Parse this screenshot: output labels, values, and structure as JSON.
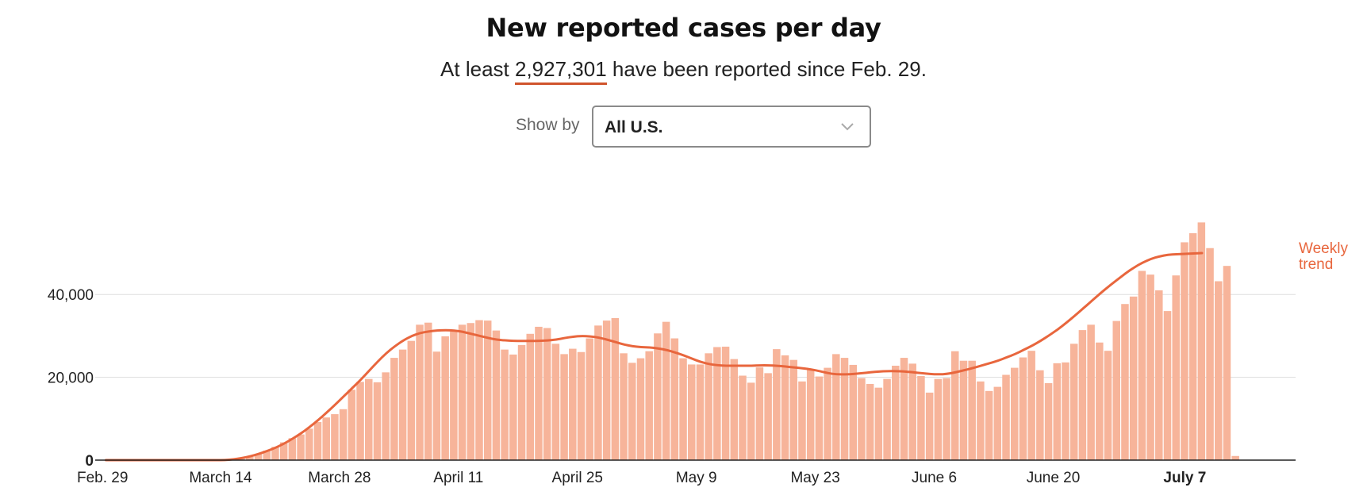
{
  "header": {
    "title": "New reported cases per day",
    "subtitle_prefix": "At least ",
    "subtitle_number": "2,927,301",
    "subtitle_suffix": " have been reported since Feb. 29."
  },
  "filter": {
    "label": "Show by",
    "selected": "All U.S.",
    "chevron_icon": "chevron-down-icon"
  },
  "colors": {
    "bar": "#f7b49a",
    "trend": "#e8663d",
    "accent_underline": "#d0542c"
  },
  "chart_data": {
    "type": "bar",
    "x_start": "Feb. 29",
    "x_end": "July 7",
    "ylim": [
      0,
      58000
    ],
    "y_ticks": [
      {
        "value": 0,
        "label": "0"
      },
      {
        "value": 20000,
        "label": "20,000"
      },
      {
        "value": 40000,
        "label": "40,000"
      }
    ],
    "x_ticks": [
      {
        "day": 0,
        "label": "Feb. 29"
      },
      {
        "day": 14,
        "label": "March 14"
      },
      {
        "day": 28,
        "label": "March 28"
      },
      {
        "day": 42,
        "label": "April 11"
      },
      {
        "day": 56,
        "label": "April 25"
      },
      {
        "day": 70,
        "label": "May 9"
      },
      {
        "day": 84,
        "label": "May 23"
      },
      {
        "day": 98,
        "label": "June 6"
      },
      {
        "day": 112,
        "label": "June 20"
      },
      {
        "day": 129,
        "label": "July 7"
      }
    ],
    "values": [
      0,
      0,
      0,
      0,
      0,
      0,
      0,
      0,
      0,
      0,
      0,
      0,
      0,
      0,
      0,
      100,
      300,
      800,
      1500,
      2300,
      3200,
      4300,
      5300,
      6200,
      7600,
      9200,
      10300,
      11100,
      12300,
      17000,
      18900,
      19600,
      18800,
      21200,
      24700,
      26700,
      28800,
      32700,
      33200,
      26200,
      29900,
      31100,
      32700,
      33100,
      33800,
      33700,
      31300,
      26700,
      25500,
      27800,
      30500,
      32200,
      31900,
      28100,
      25600,
      26900,
      26100,
      29400,
      32500,
      33700,
      34300,
      25800,
      23500,
      24600,
      26300,
      30600,
      33400,
      29400,
      24600,
      23100,
      23100,
      25800,
      27300,
      27400,
      24400,
      20400,
      18700,
      22400,
      21000,
      26800,
      25300,
      24200,
      19000,
      22000,
      20200,
      22300,
      25600,
      24700,
      23000,
      19800,
      18400,
      17500,
      19600,
      22800,
      24700,
      23300,
      20300,
      16300,
      19600,
      19800,
      26300,
      24000,
      24000,
      19000,
      16700,
      17700,
      20600,
      22300,
      24800,
      26400,
      21700,
      18600,
      23400,
      23600,
      28100,
      31400,
      32700,
      28400,
      26400,
      33600,
      37700,
      39500,
      45700,
      44800,
      41000,
      36000,
      44600,
      52600,
      54800,
      57400,
      51200,
      43200,
      46900,
      1000
    ],
    "trend_series_name": "Weekly trend",
    "trend_label_line1": "Weekly",
    "trend_label_line2": "trend",
    "trend": [
      0,
      0,
      0,
      0,
      0,
      0,
      0,
      0,
      0,
      0,
      0,
      0,
      0,
      0,
      0,
      200,
      500,
      900,
      1500,
      2200,
      3000,
      4000,
      5200,
      6500,
      8000,
      9700,
      11500,
      13400,
      15400,
      17400,
      19400,
      21600,
      23800,
      25800,
      27500,
      28900,
      30000,
      30700,
      31100,
      31300,
      31400,
      31300,
      31000,
      30500,
      30000,
      29500,
      29100,
      28900,
      28800,
      28800,
      28800,
      28800,
      28900,
      29100,
      29500,
      29800,
      30000,
      29900,
      29600,
      29100,
      28500,
      27900,
      27500,
      27300,
      27200,
      27000,
      26600,
      26000,
      25300,
      24500,
      23700,
      23200,
      22900,
      22800,
      22800,
      22800,
      22800,
      22900,
      22900,
      22800,
      22600,
      22400,
      22200,
      21900,
      21500,
      21000,
      20700,
      20700,
      20800,
      21000,
      21200,
      21400,
      21500,
      21500,
      21400,
      21200,
      21000,
      20800,
      20700,
      20800,
      21200,
      21700,
      22200,
      22800,
      23400,
      24000,
      24800,
      25600,
      26600,
      27600,
      28800,
      30100,
      31500,
      33100,
      34800,
      36600,
      38400,
      40200,
      41900,
      43500,
      45100,
      46500,
      47700,
      48600,
      49200,
      49600,
      49700,
      49800,
      49900,
      50000
    ]
  }
}
